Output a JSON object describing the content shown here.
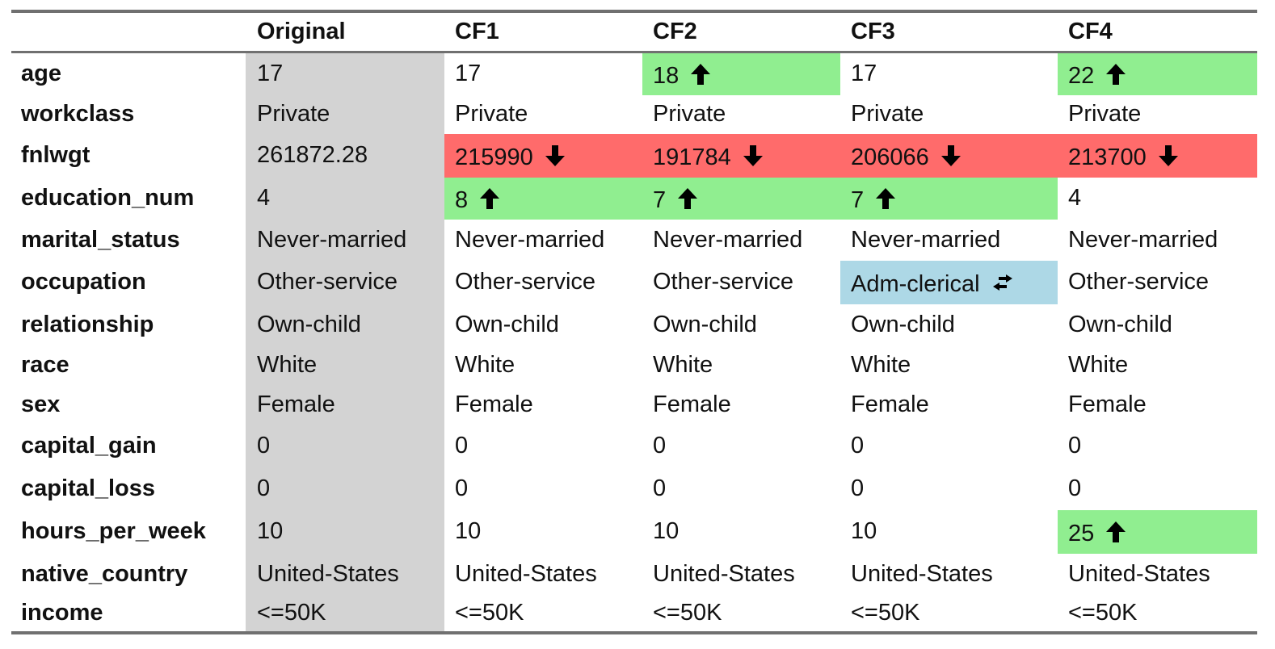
{
  "columns": [
    "Original",
    "CF1",
    "CF2",
    "CF3",
    "CF4"
  ],
  "rows": [
    {
      "label": "age",
      "values": [
        "17",
        "17",
        "18",
        "17",
        "22"
      ],
      "change": [
        "",
        "",
        "up",
        "",
        "up"
      ]
    },
    {
      "label": "workclass",
      "values": [
        "Private",
        "Private",
        "Private",
        "Private",
        "Private"
      ],
      "change": [
        "",
        "",
        "",
        "",
        ""
      ]
    },
    {
      "label": "fnlwgt",
      "values": [
        "261872.28",
        "215990",
        "191784",
        "206066",
        "213700"
      ],
      "change": [
        "",
        "down",
        "down",
        "down",
        "down"
      ]
    },
    {
      "label": "education_num",
      "values": [
        "4",
        "8",
        "7",
        "7",
        "4"
      ],
      "change": [
        "",
        "up",
        "up",
        "up",
        ""
      ]
    },
    {
      "label": "marital_status",
      "values": [
        "Never-married",
        "Never-married",
        "Never-married",
        "Never-married",
        "Never-married"
      ],
      "change": [
        "",
        "",
        "",
        "",
        ""
      ]
    },
    {
      "label": "occupation",
      "values": [
        "Other-service",
        "Other-service",
        "Other-service",
        "Adm-clerical",
        "Other-service"
      ],
      "change": [
        "",
        "",
        "",
        "swap",
        ""
      ]
    },
    {
      "label": "relationship",
      "values": [
        "Own-child",
        "Own-child",
        "Own-child",
        "Own-child",
        "Own-child"
      ],
      "change": [
        "",
        "",
        "",
        "",
        ""
      ]
    },
    {
      "label": "race",
      "values": [
        "White",
        "White",
        "White",
        "White",
        "White"
      ],
      "change": [
        "",
        "",
        "",
        "",
        ""
      ]
    },
    {
      "label": "sex",
      "values": [
        "Female",
        "Female",
        "Female",
        "Female",
        "Female"
      ],
      "change": [
        "",
        "",
        "",
        "",
        ""
      ]
    },
    {
      "label": "capital_gain",
      "values": [
        "0",
        "0",
        "0",
        "0",
        "0"
      ],
      "change": [
        "",
        "",
        "",
        "",
        ""
      ]
    },
    {
      "label": "capital_loss",
      "values": [
        "0",
        "0",
        "0",
        "0",
        "0"
      ],
      "change": [
        "",
        "",
        "",
        "",
        ""
      ]
    },
    {
      "label": "hours_per_week",
      "values": [
        "10",
        "10",
        "10",
        "10",
        "25"
      ],
      "change": [
        "",
        "",
        "",
        "",
        "up"
      ]
    },
    {
      "label": "native_country",
      "values": [
        "United-States",
        "United-States",
        "United-States",
        "United-States",
        "United-States"
      ],
      "change": [
        "",
        "",
        "",
        "",
        ""
      ]
    },
    {
      "label": "income",
      "values": [
        "<=50K",
        "<=50K",
        "<=50K",
        "<=50K",
        "<=50K"
      ],
      "change": [
        "",
        "",
        "",
        "",
        ""
      ]
    }
  ],
  "icons": {
    "up": "arrow-up-icon",
    "down": "arrow-down-icon",
    "swap": "swap-arrows-icon"
  },
  "colors": {
    "increase": "#90ee90",
    "decrease": "#ff6b6b",
    "changed": "#add8e6",
    "original": "#d3d3d3"
  }
}
